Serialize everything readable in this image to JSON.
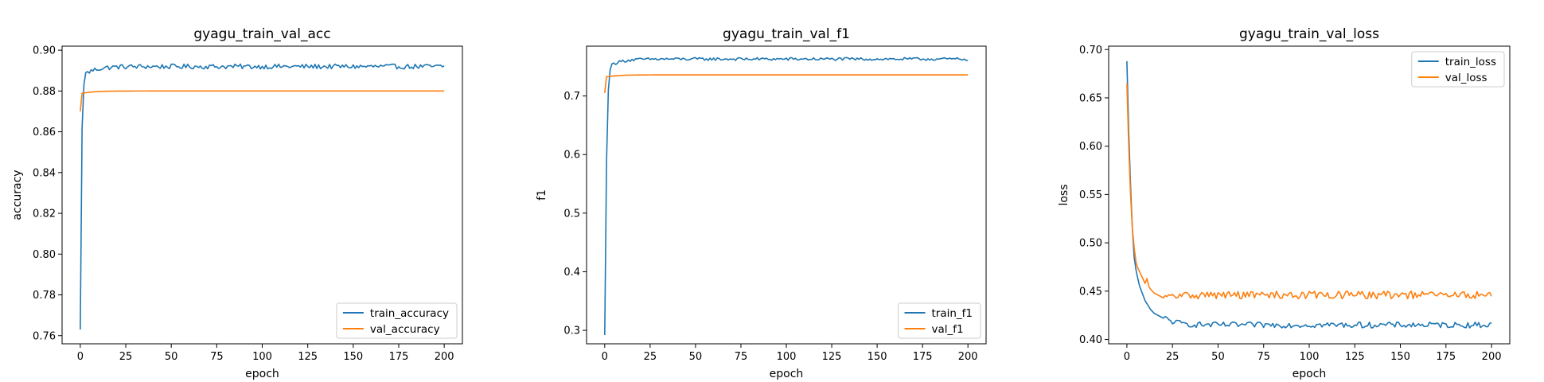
{
  "colors": {
    "train": "#1f77b4",
    "val": "#ff7f0e"
  },
  "chart_data": [
    {
      "type": "line",
      "title": "gyagu_train_val_acc",
      "xlabel": "epoch",
      "ylabel": "accuracy",
      "xlim": [
        -10,
        210
      ],
      "ylim": [
        0.756,
        0.902
      ],
      "xticks": [
        0,
        25,
        50,
        75,
        100,
        125,
        150,
        175,
        200
      ],
      "yticks": [
        0.76,
        0.78,
        0.8,
        0.82,
        0.84,
        0.86,
        0.88,
        0.9
      ],
      "ytick_labels": [
        "0.76",
        "0.78",
        "0.80",
        "0.82",
        "0.84",
        "0.86",
        "0.88",
        "0.90"
      ],
      "legend_position": "lower-right",
      "series": [
        {
          "name": "train_accuracy",
          "key": "train",
          "x_start": 0,
          "x_end": 200,
          "start_values": [
            0.763,
            0.862,
            0.883,
            0.889
          ],
          "plateau": 0.892,
          "noise": 0.0012
        },
        {
          "name": "val_accuracy",
          "key": "val",
          "x_start": 0,
          "x_end": 200,
          "start_values": [
            0.87,
            0.879
          ],
          "plateau": 0.88,
          "noise": 0.0
        }
      ]
    },
    {
      "type": "line",
      "title": "gyagu_train_val_f1",
      "xlabel": "epoch",
      "ylabel": "f1",
      "xlim": [
        -10,
        210
      ],
      "ylim": [
        0.277,
        0.785
      ],
      "xticks": [
        0,
        25,
        50,
        75,
        100,
        125,
        150,
        175,
        200
      ],
      "yticks": [
        0.3,
        0.4,
        0.5,
        0.6,
        0.7
      ],
      "ytick_labels": [
        "0.3",
        "0.4",
        "0.5",
        "0.6",
        "0.7"
      ],
      "legend_position": "lower-right",
      "series": [
        {
          "name": "train_f1",
          "key": "train",
          "x_start": 0,
          "x_end": 200,
          "start_values": [
            0.292,
            0.588,
            0.71,
            0.745,
            0.755
          ],
          "plateau": 0.763,
          "noise": 0.0025
        },
        {
          "name": "val_f1",
          "key": "val",
          "x_start": 0,
          "x_end": 200,
          "start_values": [
            0.705,
            0.733
          ],
          "plateau": 0.736,
          "noise": 0.0
        }
      ]
    },
    {
      "type": "line",
      "title": "gyagu_train_val_loss",
      "xlabel": "epoch",
      "ylabel": "loss",
      "xlim": [
        -10,
        210
      ],
      "ylim": [
        0.3955,
        0.7035
      ],
      "xticks": [
        0,
        25,
        50,
        75,
        100,
        125,
        150,
        175,
        200
      ],
      "yticks": [
        0.4,
        0.45,
        0.5,
        0.55,
        0.6,
        0.65,
        0.7
      ],
      "ytick_labels": [
        "0.40",
        "0.45",
        "0.50",
        "0.55",
        "0.60",
        "0.65",
        "0.70"
      ],
      "legend_position": "upper-right",
      "series": [
        {
          "name": "train_loss",
          "key": "train",
          "x_start": 0,
          "x_end": 200,
          "start_values": [
            0.688,
            0.615,
            0.56,
            0.515,
            0.485,
            0.472,
            0.463,
            0.455,
            0.45,
            0.445,
            0.44,
            0.437,
            0.434,
            0.431,
            0.429,
            0.427,
            0.426,
            0.425,
            0.424,
            0.423,
            0.422
          ],
          "plateau": 0.415,
          "noise": 0.003
        },
        {
          "name": "val_loss",
          "key": "val",
          "x_start": 0,
          "x_end": 200,
          "start_values": [
            0.665,
            0.6,
            0.55,
            0.515,
            0.495,
            0.48,
            0.474,
            0.47,
            0.466,
            0.462,
            0.458,
            0.463,
            0.455,
            0.452,
            0.45,
            0.448,
            0.447,
            0.446,
            0.445,
            0.444,
            0.443
          ],
          "plateau": 0.446,
          "noise": 0.004
        }
      ]
    }
  ]
}
